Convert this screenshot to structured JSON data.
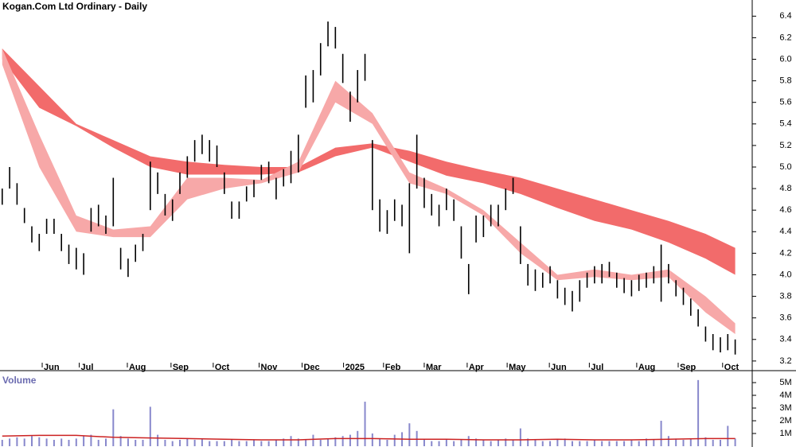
{
  "chart_data": [
    {
      "type": "ohlc",
      "title": "Kogan.Com Ltd Ordinary - Daily",
      "color": "#000000",
      "x": [
        0,
        1,
        2,
        3,
        4,
        5,
        6,
        7,
        8,
        9,
        10,
        11,
        12,
        13,
        14,
        15,
        16,
        17,
        18,
        19,
        20,
        21,
        22,
        23,
        24,
        25,
        26,
        27,
        28,
        29,
        30,
        31,
        32,
        33,
        34,
        35,
        36,
        37,
        38,
        39,
        40,
        41,
        42,
        43,
        44,
        45,
        46,
        47,
        48,
        49,
        50,
        51,
        52,
        53,
        54,
        55,
        56,
        57,
        58,
        59,
        60,
        61,
        62,
        63,
        64,
        65,
        66,
        67,
        68,
        69,
        70,
        71,
        72,
        73,
        74,
        75,
        76,
        77,
        78,
        79,
        80,
        81,
        82,
        83,
        84,
        85,
        86,
        87,
        88,
        89,
        90,
        91,
        92,
        93,
        94,
        95,
        96,
        97,
        98,
        99
      ],
      "high": [
        4.8,
        5.0,
        4.85,
        4.62,
        4.45,
        4.38,
        4.52,
        4.52,
        4.38,
        4.28,
        4.25,
        4.2,
        4.62,
        4.65,
        4.55,
        4.9,
        4.25,
        4.15,
        4.28,
        4.38,
        5.05,
        4.95,
        4.75,
        4.7,
        4.95,
        5.1,
        5.25,
        5.3,
        5.25,
        5.2,
        4.95,
        4.68,
        4.68,
        4.82,
        4.88,
        5.02,
        5.05,
        4.9,
        4.98,
        5.15,
        5.3,
        5.85,
        5.9,
        6.15,
        6.35,
        6.3,
        6.05,
        5.7,
        5.9,
        6.05,
        5.25,
        4.7,
        4.6,
        4.7,
        4.65,
        4.85,
        5.3,
        4.9,
        4.75,
        4.65,
        4.8,
        4.7,
        4.45,
        4.1,
        4.55,
        4.55,
        4.65,
        4.65,
        4.8,
        4.9,
        4.45,
        4.1,
        4.05,
        4.02,
        4.08,
        3.95,
        3.88,
        3.85,
        3.95,
        4.02,
        4.08,
        4.1,
        4.12,
        4.02,
        3.97,
        3.95,
        4.0,
        4.02,
        4.08,
        4.28,
        4.1,
        3.95,
        3.88,
        3.78,
        3.68,
        3.52,
        3.45,
        3.42,
        3.45,
        3.4
      ],
      "low": [
        4.65,
        4.8,
        4.65,
        4.48,
        4.3,
        4.22,
        4.38,
        4.38,
        4.22,
        4.1,
        4.05,
        4.0,
        4.4,
        4.45,
        4.38,
        4.45,
        4.05,
        3.98,
        4.12,
        4.22,
        4.6,
        4.75,
        4.55,
        4.5,
        4.75,
        4.9,
        5.05,
        5.12,
        5.05,
        5.0,
        4.75,
        4.52,
        4.52,
        4.68,
        4.72,
        4.88,
        4.85,
        4.7,
        4.82,
        4.85,
        4.95,
        5.55,
        5.6,
        5.85,
        6.12,
        6.1,
        5.78,
        5.42,
        5.6,
        5.8,
        4.6,
        4.4,
        4.38,
        4.5,
        4.45,
        4.2,
        4.8,
        4.62,
        4.55,
        4.45,
        4.6,
        4.5,
        4.15,
        3.82,
        4.3,
        4.35,
        4.45,
        4.45,
        4.6,
        4.75,
        4.1,
        3.9,
        3.85,
        3.88,
        3.92,
        3.78,
        3.72,
        3.66,
        3.75,
        3.88,
        3.92,
        3.92,
        3.98,
        3.88,
        3.83,
        3.8,
        3.85,
        3.88,
        3.92,
        3.75,
        3.92,
        3.8,
        3.72,
        3.62,
        3.52,
        3.38,
        3.3,
        3.28,
        3.3,
        3.26
      ],
      "bands": [
        {
          "color": "#f26b6b",
          "x": [
            0,
            5,
            10,
            15,
            20,
            25,
            30,
            35,
            40,
            45,
            50,
            55,
            60,
            65,
            70,
            75,
            80,
            85,
            90,
            95,
            99
          ],
          "upper": [
            6.1,
            5.75,
            5.4,
            5.25,
            5.1,
            5.05,
            5.02,
            5.0,
            5.0,
            5.18,
            5.22,
            5.15,
            5.05,
            4.97,
            4.9,
            4.8,
            4.7,
            4.6,
            4.5,
            4.38,
            4.25
          ],
          "lower": [
            6.0,
            5.55,
            5.38,
            5.18,
            5.0,
            4.93,
            4.93,
            4.93,
            4.95,
            5.1,
            5.18,
            5.05,
            4.92,
            4.85,
            4.75,
            4.62,
            4.5,
            4.42,
            4.3,
            4.15,
            4.0
          ]
        },
        {
          "color": "#f7a8a8",
          "x": [
            0,
            5,
            10,
            15,
            20,
            25,
            30,
            35,
            40,
            45,
            50,
            55,
            60,
            65,
            70,
            75,
            80,
            85,
            90,
            95,
            99
          ],
          "upper": [
            6.1,
            5.3,
            4.55,
            4.42,
            4.45,
            4.9,
            4.9,
            4.88,
            5.05,
            5.8,
            5.5,
            4.95,
            4.8,
            4.6,
            4.3,
            4.0,
            4.05,
            4.0,
            4.05,
            3.8,
            3.55
          ],
          "lower": [
            5.95,
            5.0,
            4.4,
            4.35,
            4.35,
            4.7,
            4.8,
            4.85,
            4.95,
            5.6,
            5.4,
            4.85,
            4.75,
            4.55,
            4.2,
            3.95,
            3.98,
            3.95,
            3.98,
            3.65,
            3.45
          ]
        }
      ],
      "xlim": [
        -0.3,
        101.3
      ],
      "ylim": [
        3.14,
        6.55
      ],
      "xticks": [
        {
          "value": 5.4,
          "label": "Jun"
        },
        {
          "value": 10.4,
          "label": "Jul"
        },
        {
          "value": 16.9,
          "label": "Aug"
        },
        {
          "value": 22.8,
          "label": "Sep"
        },
        {
          "value": 28.5,
          "label": "Oct"
        },
        {
          "value": 34.7,
          "label": "Nov"
        },
        {
          "value": 40.5,
          "label": "Dec"
        },
        {
          "value": 46.1,
          "label": "2025"
        },
        {
          "value": 51.5,
          "label": "Feb"
        },
        {
          "value": 57,
          "label": "Mar"
        },
        {
          "value": 62.8,
          "label": "Apr"
        },
        {
          "value": 68.2,
          "label": "May"
        },
        {
          "value": 73.9,
          "label": "Jun"
        },
        {
          "value": 79.3,
          "label": "Jul"
        },
        {
          "value": 85.7,
          "label": "Aug"
        },
        {
          "value": 91.3,
          "label": "Sep"
        },
        {
          "value": 97.3,
          "label": "Oct"
        }
      ],
      "yticks": [
        3.2,
        3.4,
        3.6,
        3.8,
        {
          "value": 4,
          "label": "4.0"
        },
        4.2,
        4.4,
        4.6,
        4.8,
        {
          "value": 5,
          "label": "5.0"
        },
        5.2,
        5.4,
        5.6,
        5.8,
        {
          "value": 6,
          "label": "6.0"
        },
        6.2,
        6.4
      ]
    },
    {
      "type": "bar",
      "title": "Volume",
      "color": "#8888cc",
      "values": [
        0.5,
        0.6,
        0.7,
        0.6,
        0.8,
        0.7,
        0.6,
        0.5,
        0.6,
        0.5,
        0.6,
        0.8,
        0.9,
        0.5,
        0.6,
        2.9,
        0.8,
        0.6,
        0.5,
        0.5,
        3.1,
        0.9,
        0.5,
        0.4,
        0.5,
        0.6,
        0.5,
        0.6,
        0.4,
        0.4,
        0.4,
        0.5,
        0.4,
        0.4,
        0.5,
        0.4,
        0.4,
        0.5,
        0.6,
        0.8,
        0.6,
        0.5,
        0.9,
        0.5,
        0.6,
        0.7,
        0.8,
        0.9,
        1.2,
        3.5,
        1.0,
        0.6,
        0.5,
        0.9,
        1.1,
        1.8,
        1.2,
        0.5,
        0.4,
        0.4,
        0.5,
        0.4,
        0.5,
        0.8,
        0.6,
        0.5,
        0.4,
        0.5,
        0.6,
        0.5,
        1.4,
        0.6,
        0.5,
        0.4,
        0.4,
        0.5,
        0.6,
        0.4,
        0.4,
        0.4,
        0.5,
        0.4,
        0.4,
        0.4,
        0.4,
        0.5,
        0.4,
        0.6,
        0.5,
        2.0,
        0.8,
        0.6,
        0.5,
        0.6,
        5.2,
        0.7,
        0.5,
        0.5,
        1.6,
        0.6
      ],
      "avg": {
        "color": "#cc2222",
        "values": [
          0.8,
          0.85,
          0.85,
          0.7,
          0.65,
          0.6,
          0.55,
          0.5,
          0.5,
          0.6,
          0.6,
          0.55,
          0.55,
          0.5,
          0.5,
          0.55,
          0.5,
          0.5,
          0.55,
          0.6,
          0.6
        ]
      },
      "ylim": [
        0,
        5.69
      ],
      "yticks": [
        {
          "value": 1,
          "label": "1M"
        },
        {
          "value": 2,
          "label": "2M"
        },
        {
          "value": 3,
          "label": "3M"
        },
        {
          "value": 4,
          "label": "4M"
        },
        {
          "value": 5,
          "label": "5M"
        }
      ]
    }
  ]
}
